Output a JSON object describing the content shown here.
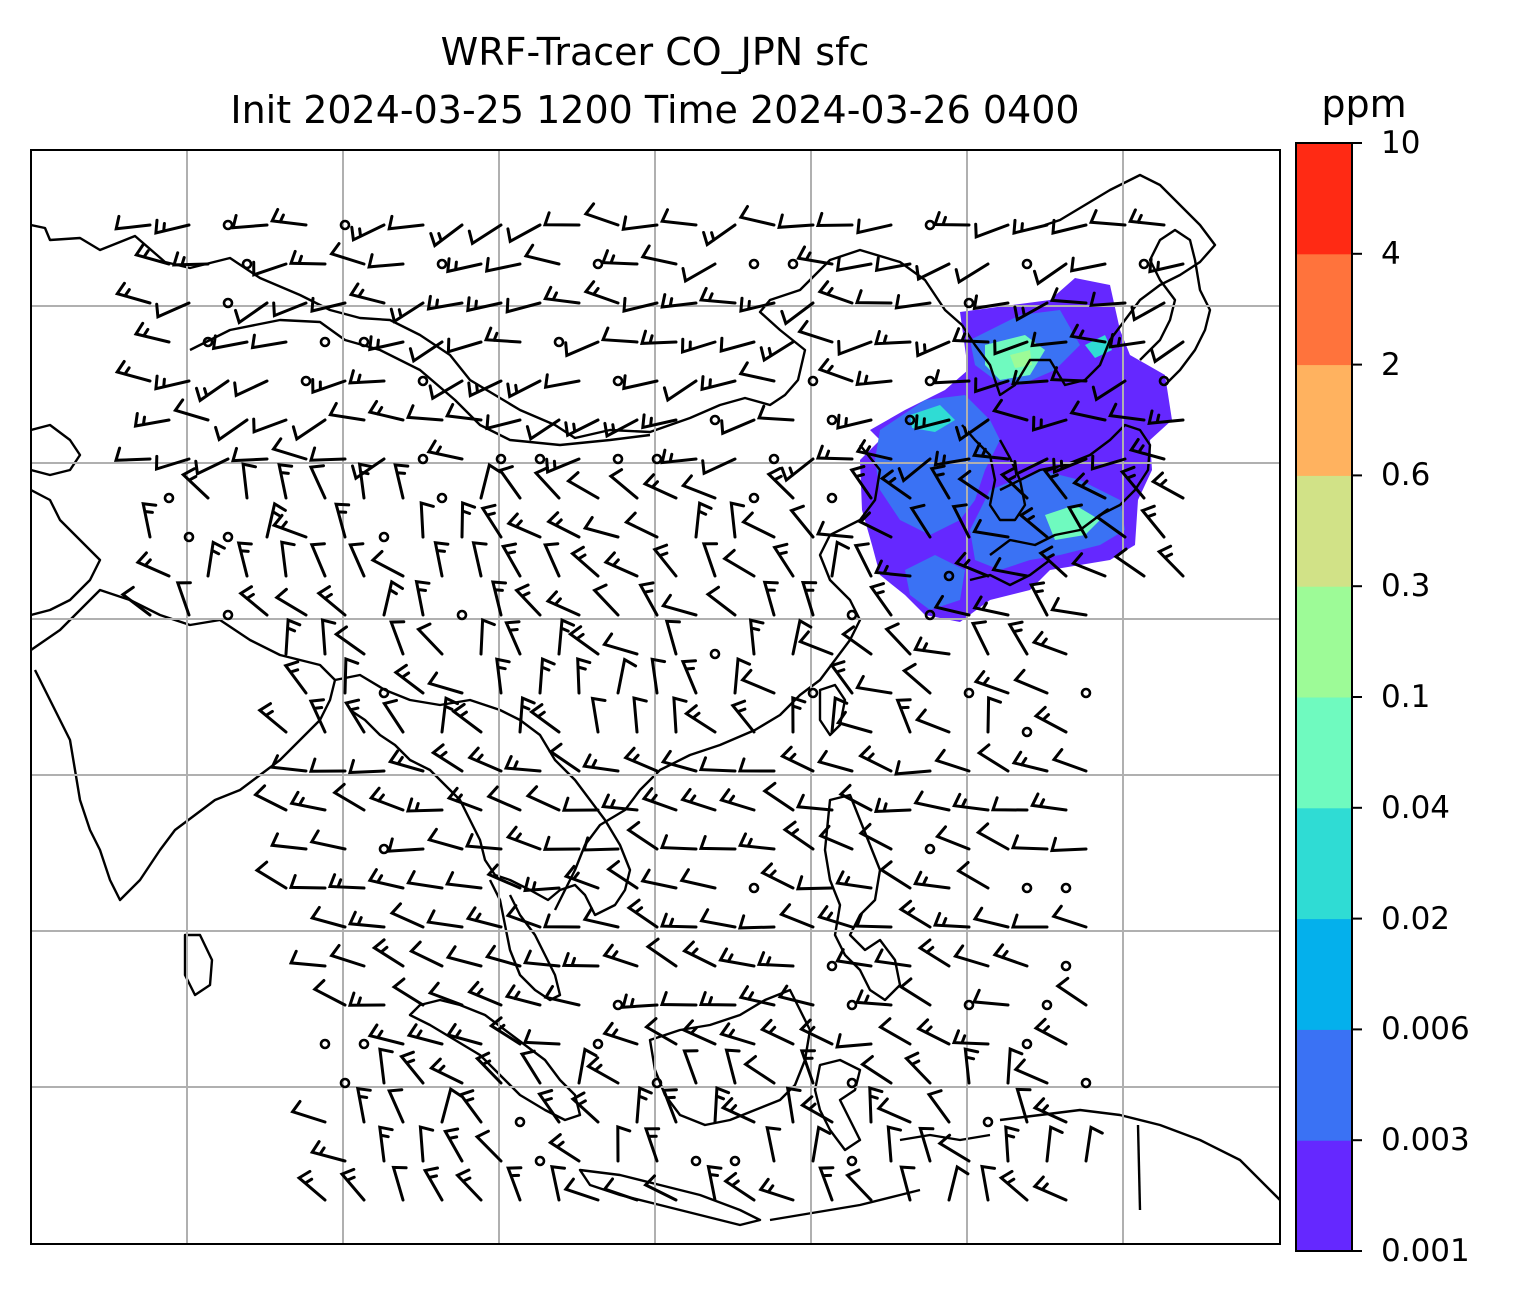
{
  "title": {
    "line1": "WRF-Tracer CO_JPN sfc",
    "line2": "Init 2024-03-25 1200 Time 2024-03-26 0400"
  },
  "colorbar": {
    "unit": "ppm",
    "levels": [
      "0.001",
      "0.003",
      "0.006",
      "0.02",
      "0.04",
      "0.1",
      "0.3",
      "0.6",
      "2",
      "4",
      "10"
    ],
    "colors": [
      "#6528ff",
      "#3a72f4",
      "#04b0ec",
      "#2fdcd4",
      "#6ffabf",
      "#9dfb97",
      "#d1e287",
      "#ffb25f",
      "#ff733c",
      "#ff2a14"
    ]
  },
  "map": {
    "gridlines": true,
    "coastline_color": "#000000",
    "gridline_color": "#b0b0b0",
    "field": "CO tracer concentration (shaded)",
    "vectors": "wind barbs"
  }
}
